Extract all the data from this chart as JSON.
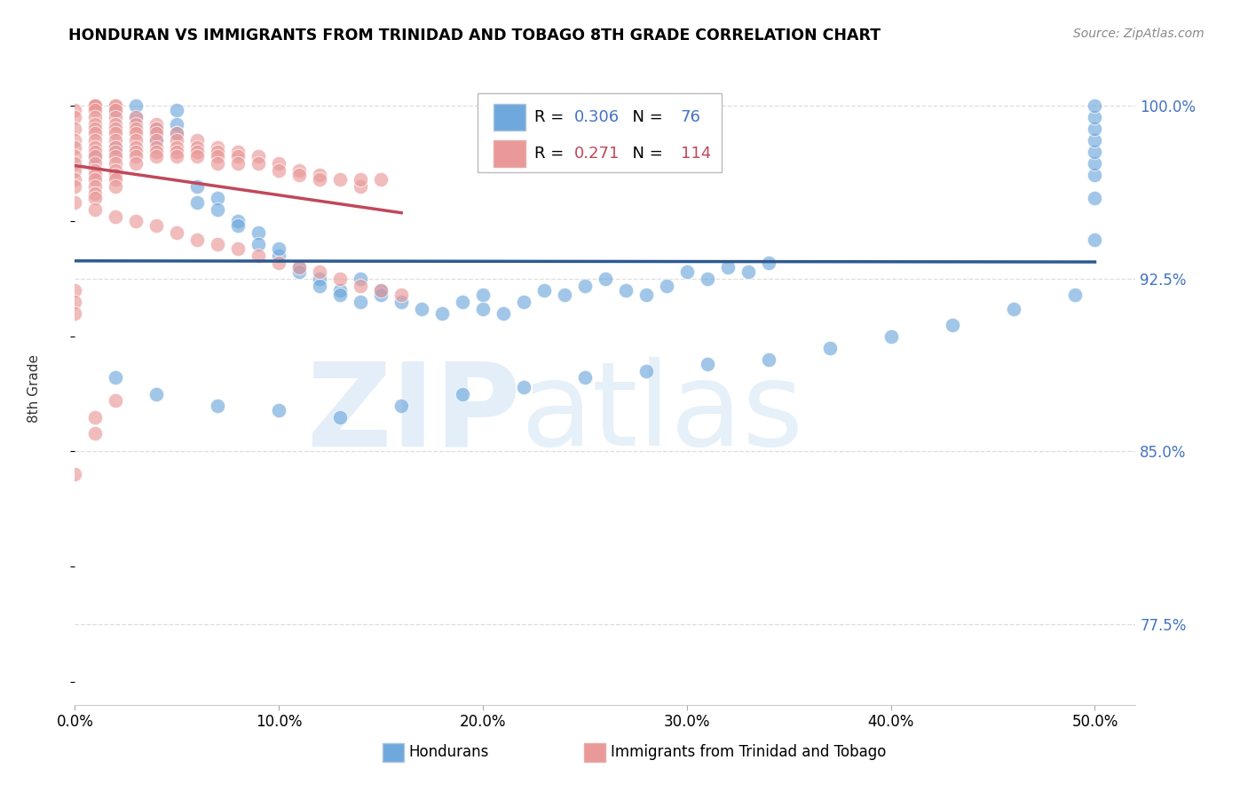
{
  "title": "HONDURAN VS IMMIGRANTS FROM TRINIDAD AND TOBAGO 8TH GRADE CORRELATION CHART",
  "source": "Source: ZipAtlas.com",
  "ylabel": "8th Grade",
  "ytick_labels": [
    "77.5%",
    "85.0%",
    "92.5%",
    "100.0%"
  ],
  "ytick_vals": [
    0.775,
    0.85,
    0.925,
    1.0
  ],
  "xtick_labels": [
    "0.0%",
    "10.0%",
    "20.0%",
    "30.0%",
    "40.0%",
    "50.0%"
  ],
  "xtick_vals": [
    0.0,
    0.1,
    0.2,
    0.3,
    0.4,
    0.5
  ],
  "xlim": [
    0.0,
    0.52
  ],
  "ylim": [
    0.74,
    1.015
  ],
  "blue_color": "#6fa8dc",
  "pink_color": "#ea9999",
  "blue_line_color": "#2d5a8e",
  "pink_line_color": "#c0485a",
  "legend_blue_R": "0.306",
  "legend_blue_N": "76",
  "legend_pink_R": "0.271",
  "legend_pink_N": "114",
  "blue_x": [
    0.01,
    0.02,
    0.02,
    0.03,
    0.03,
    0.04,
    0.04,
    0.05,
    0.05,
    0.05,
    0.06,
    0.06,
    0.07,
    0.07,
    0.08,
    0.08,
    0.09,
    0.09,
    0.1,
    0.1,
    0.11,
    0.11,
    0.12,
    0.12,
    0.13,
    0.13,
    0.14,
    0.14,
    0.15,
    0.15,
    0.16,
    0.17,
    0.18,
    0.19,
    0.2,
    0.2,
    0.21,
    0.22,
    0.23,
    0.24,
    0.25,
    0.26,
    0.27,
    0.28,
    0.29,
    0.3,
    0.31,
    0.32,
    0.33,
    0.34,
    0.02,
    0.04,
    0.07,
    0.1,
    0.13,
    0.16,
    0.19,
    0.22,
    0.25,
    0.28,
    0.31,
    0.34,
    0.37,
    0.4,
    0.43,
    0.46,
    0.49,
    0.5,
    0.5,
    0.5,
    0.5,
    0.5,
    0.5,
    0.5,
    0.5,
    0.5
  ],
  "blue_y": [
    0.978,
    0.982,
    0.998,
    0.995,
    1.0,
    0.99,
    0.985,
    0.998,
    0.992,
    0.988,
    0.965,
    0.958,
    0.96,
    0.955,
    0.95,
    0.948,
    0.945,
    0.94,
    0.935,
    0.938,
    0.93,
    0.928,
    0.925,
    0.922,
    0.92,
    0.918,
    0.925,
    0.915,
    0.92,
    0.918,
    0.915,
    0.912,
    0.91,
    0.915,
    0.918,
    0.912,
    0.91,
    0.915,
    0.92,
    0.918,
    0.922,
    0.925,
    0.92,
    0.918,
    0.922,
    0.928,
    0.925,
    0.93,
    0.928,
    0.932,
    0.882,
    0.875,
    0.87,
    0.868,
    0.865,
    0.87,
    0.875,
    0.878,
    0.882,
    0.885,
    0.888,
    0.89,
    0.895,
    0.9,
    0.905,
    0.912,
    0.918,
    0.942,
    0.96,
    0.97,
    0.975,
    0.98,
    0.985,
    0.99,
    0.995,
    1.0
  ],
  "pink_x": [
    0.0,
    0.0,
    0.0,
    0.0,
    0.0,
    0.0,
    0.0,
    0.0,
    0.0,
    0.0,
    0.01,
    0.01,
    0.01,
    0.01,
    0.01,
    0.01,
    0.01,
    0.01,
    0.01,
    0.01,
    0.01,
    0.01,
    0.01,
    0.01,
    0.01,
    0.01,
    0.01,
    0.01,
    0.01,
    0.01,
    0.02,
    0.02,
    0.02,
    0.02,
    0.02,
    0.02,
    0.02,
    0.02,
    0.02,
    0.02,
    0.02,
    0.02,
    0.02,
    0.02,
    0.02,
    0.02,
    0.03,
    0.03,
    0.03,
    0.03,
    0.03,
    0.03,
    0.03,
    0.03,
    0.03,
    0.04,
    0.04,
    0.04,
    0.04,
    0.04,
    0.04,
    0.04,
    0.05,
    0.05,
    0.05,
    0.05,
    0.05,
    0.06,
    0.06,
    0.06,
    0.06,
    0.07,
    0.07,
    0.07,
    0.07,
    0.08,
    0.08,
    0.08,
    0.09,
    0.09,
    0.1,
    0.1,
    0.11,
    0.11,
    0.12,
    0.12,
    0.13,
    0.14,
    0.14,
    0.15,
    0.0,
    0.01,
    0.02,
    0.03,
    0.04,
    0.05,
    0.06,
    0.07,
    0.08,
    0.09,
    0.1,
    0.11,
    0.12,
    0.13,
    0.14,
    0.15,
    0.16,
    0.0,
    0.0,
    0.0,
    0.0,
    0.01,
    0.01,
    0.02
  ],
  "pink_y": [
    0.998,
    0.995,
    0.99,
    0.985,
    0.982,
    0.978,
    0.975,
    0.972,
    0.968,
    0.965,
    1.0,
    1.0,
    1.0,
    1.0,
    0.998,
    0.995,
    0.992,
    0.99,
    0.988,
    0.985,
    0.982,
    0.98,
    0.978,
    0.975,
    0.972,
    0.97,
    0.968,
    0.965,
    0.962,
    0.96,
    1.0,
    1.0,
    0.998,
    0.995,
    0.992,
    0.99,
    0.988,
    0.985,
    0.982,
    0.98,
    0.978,
    0.975,
    0.972,
    0.97,
    0.968,
    0.965,
    0.995,
    0.992,
    0.99,
    0.988,
    0.985,
    0.982,
    0.98,
    0.978,
    0.975,
    0.992,
    0.99,
    0.988,
    0.985,
    0.982,
    0.98,
    0.978,
    0.988,
    0.985,
    0.982,
    0.98,
    0.978,
    0.985,
    0.982,
    0.98,
    0.978,
    0.982,
    0.98,
    0.978,
    0.975,
    0.98,
    0.978,
    0.975,
    0.978,
    0.975,
    0.975,
    0.972,
    0.972,
    0.97,
    0.97,
    0.968,
    0.968,
    0.965,
    0.968,
    0.968,
    0.958,
    0.955,
    0.952,
    0.95,
    0.948,
    0.945,
    0.942,
    0.94,
    0.938,
    0.935,
    0.932,
    0.93,
    0.928,
    0.925,
    0.922,
    0.92,
    0.918,
    0.92,
    0.915,
    0.91,
    0.84,
    0.858,
    0.865,
    0.872
  ]
}
